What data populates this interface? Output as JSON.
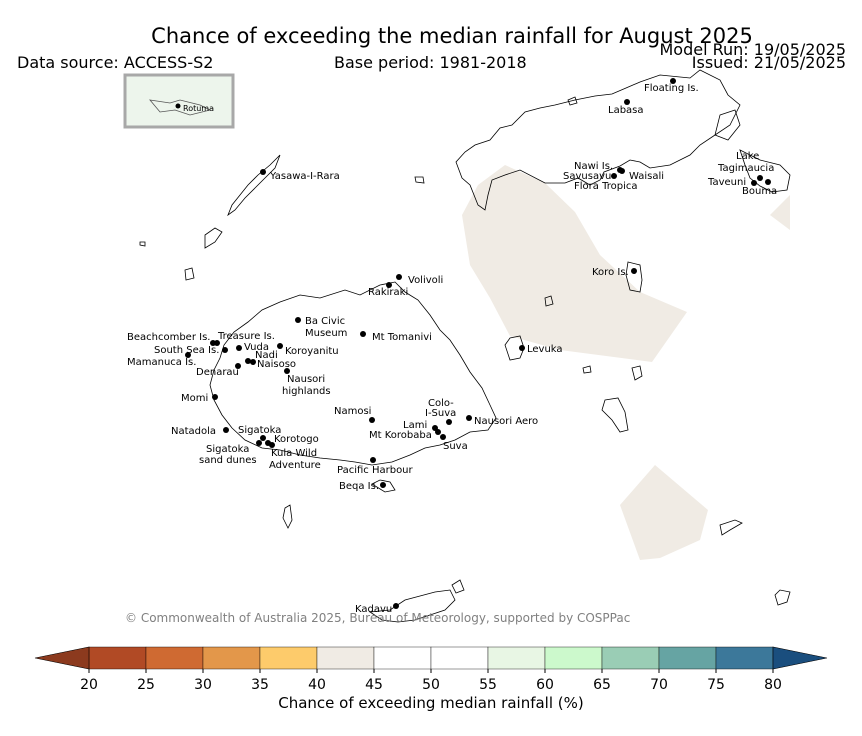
{
  "header": {
    "title": "Chance of exceeding the median rainfall for August 2025",
    "data_source": "Data source: ACCESS-S2",
    "base_period": "Base period: 1981-2018",
    "model_run": "Model Run: 19/05/2025",
    "issued": "Issued: 21/05/2025"
  },
  "inset": {
    "label": "Rotuma"
  },
  "places": [
    {
      "name": "Floating Is."
    },
    {
      "name": "Labasa"
    },
    {
      "name": "Nawi Is."
    },
    {
      "name": "Savusavu"
    },
    {
      "name": "Waisali"
    },
    {
      "name": "Flora Tropica"
    },
    {
      "name": "Lake"
    },
    {
      "name": "Tagimaucia"
    },
    {
      "name": "Taveuni"
    },
    {
      "name": "Bouma"
    },
    {
      "name": "Yasawa-I-Rara"
    },
    {
      "name": "Volivoli"
    },
    {
      "name": "Rakiraki"
    },
    {
      "name": "Koro Is."
    },
    {
      "name": "Ba Civic"
    },
    {
      "name": "Museum"
    },
    {
      "name": "Mt Tomanivi"
    },
    {
      "name": "Beachcomber Is."
    },
    {
      "name": "Treasure Is."
    },
    {
      "name": "South Sea Is."
    },
    {
      "name": "Vuda"
    },
    {
      "name": "Koroyanitu"
    },
    {
      "name": "Nadi"
    },
    {
      "name": "Mamanuca Is."
    },
    {
      "name": "Naisoso"
    },
    {
      "name": "Denarau"
    },
    {
      "name": "Levuka"
    },
    {
      "name": "Nausori"
    },
    {
      "name": "highlands"
    },
    {
      "name": "Momi"
    },
    {
      "name": "Colo-"
    },
    {
      "name": "I-Suva"
    },
    {
      "name": "Namosi"
    },
    {
      "name": "Lami"
    },
    {
      "name": "Nausori Aero"
    },
    {
      "name": "Mt Korobaba"
    },
    {
      "name": "Natadola"
    },
    {
      "name": "Sigatoka"
    },
    {
      "name": "Korotogo"
    },
    {
      "name": "Suva"
    },
    {
      "name": "Sigatoka"
    },
    {
      "name": "sand dunes"
    },
    {
      "name": "Kula Wild"
    },
    {
      "name": "Adventure"
    },
    {
      "name": "Pacific Harbour"
    },
    {
      "name": "Beqa Is."
    },
    {
      "name": "Kadavu"
    }
  ],
  "copyright": "© Commonwealth of Australia 2025, Bureau of Meteorology, supported by COSPPac",
  "colorbar": {
    "label": "Chance of exceeding median rainfall (%)",
    "ticks": [
      "20",
      "25",
      "30",
      "35",
      "40",
      "45",
      "50",
      "55",
      "60",
      "65",
      "70",
      "75",
      "80"
    ],
    "low_extend_color": "#8c3a1e",
    "high_extend_color": "#1a4e7e",
    "colors": [
      "#b14a25",
      "#cf6a32",
      "#e3974a",
      "#fdcb6b",
      "#f0ebe4",
      "#ffffff",
      "#ffffff",
      "#e8f6e4",
      "#ccf9cc",
      "#9acdb5",
      "#66a4a3",
      "#3c789a"
    ],
    "shading_color": "#f0ebe4"
  }
}
